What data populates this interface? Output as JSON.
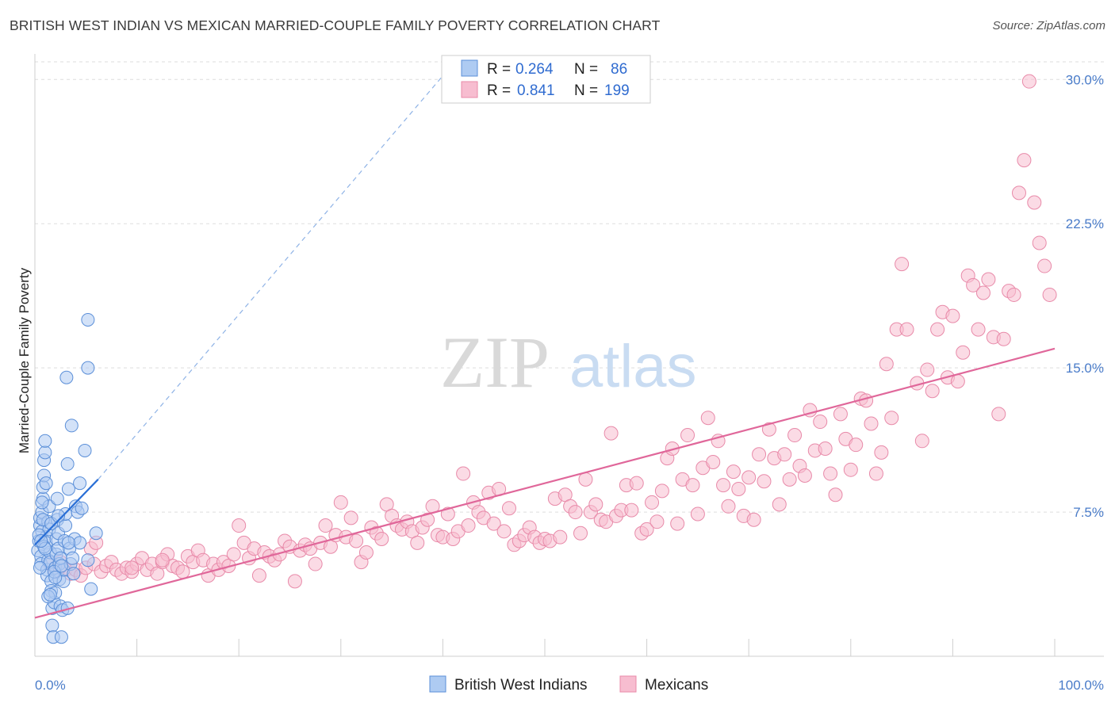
{
  "title": "BRITISH WEST INDIAN VS MEXICAN MARRIED-COUPLE FAMILY POVERTY CORRELATION CHART",
  "source": "Source: ZipAtlas.com",
  "watermark": {
    "zip": "ZIP",
    "atlas": "atlas"
  },
  "colors": {
    "blue_fill": "#aecbf2",
    "blue_stroke": "#5b8fd8",
    "blue_line": "#2a6fd6",
    "pink_fill": "#f7bdd0",
    "pink_stroke": "#e88aa9",
    "pink_line": "#e0679a",
    "grid": "#dddddd",
    "tick_label": "#4a7cc9"
  },
  "legend": {
    "rows": [
      {
        "r_label": "R =",
        "r_value": "0.264",
        "n_label": "N =",
        "n_value": "86"
      },
      {
        "r_label": "R =",
        "r_value": "0.841",
        "n_label": "N =",
        "n_value": "199"
      }
    ]
  },
  "bottom_legend": [
    "British West Indians",
    "Mexicans"
  ],
  "chart_data": {
    "type": "scatter",
    "title": "BRITISH WEST INDIAN VS MEXICAN MARRIED-COUPLE FAMILY POVERTY CORRELATION CHART",
    "xlabel": "",
    "ylabel": "Married-Couple Family Poverty",
    "xlim": [
      0,
      100
    ],
    "ylim": [
      0,
      31
    ],
    "x_tick_labels": [
      "0.0%",
      "100.0%"
    ],
    "y_ticks": [
      7.5,
      15.0,
      22.5,
      30.0
    ],
    "y_tick_labels": [
      "7.5%",
      "15.0%",
      "22.5%",
      "30.0%"
    ],
    "grid": true,
    "legend_position": "top-center",
    "series": [
      {
        "name": "British West Indians",
        "R": 0.264,
        "N": 86,
        "trend": {
          "x0": 0,
          "y0": 5.8,
          "x1": 6.2,
          "y1": 9.2,
          "dashed_to_x": 40.5,
          "dashed_to_y": 30.5
        },
        "points": [
          [
            0.3,
            5.5
          ],
          [
            0.4,
            6.0
          ],
          [
            0.5,
            6.8
          ],
          [
            0.5,
            7.2
          ],
          [
            0.6,
            5.2
          ],
          [
            0.6,
            4.8
          ],
          [
            0.7,
            6.5
          ],
          [
            0.7,
            7.5
          ],
          [
            0.8,
            8.2
          ],
          [
            0.8,
            8.8
          ],
          [
            0.9,
            9.4
          ],
          [
            0.9,
            10.2
          ],
          [
            1.0,
            10.6
          ],
          [
            1.0,
            11.2
          ],
          [
            1.1,
            6.2
          ],
          [
            1.1,
            5.9
          ],
          [
            1.2,
            4.5
          ],
          [
            1.2,
            4.2
          ],
          [
            1.3,
            5.0
          ],
          [
            1.3,
            7.0
          ],
          [
            1.4,
            7.8
          ],
          [
            1.4,
            6.6
          ],
          [
            1.5,
            5.4
          ],
          [
            1.5,
            4.9
          ],
          [
            1.6,
            3.9
          ],
          [
            1.6,
            3.4
          ],
          [
            1.7,
            2.5
          ],
          [
            1.7,
            1.6
          ],
          [
            1.8,
            1.0
          ],
          [
            1.9,
            2.8
          ],
          [
            2.0,
            3.3
          ],
          [
            2.0,
            4.6
          ],
          [
            2.1,
            5.3
          ],
          [
            2.1,
            6.1
          ],
          [
            2.2,
            7.1
          ],
          [
            2.2,
            8.2
          ],
          [
            2.3,
            6.4
          ],
          [
            2.3,
            5.6
          ],
          [
            2.4,
            4.8
          ],
          [
            2.4,
            4.0
          ],
          [
            2.5,
            2.6
          ],
          [
            2.6,
            1.0
          ],
          [
            2.7,
            2.4
          ],
          [
            2.8,
            3.9
          ],
          [
            2.8,
            4.5
          ],
          [
            2.9,
            6.0
          ],
          [
            3.0,
            6.8
          ],
          [
            3.0,
            7.4
          ],
          [
            3.1,
            14.5
          ],
          [
            3.2,
            10.0
          ],
          [
            3.3,
            8.7
          ],
          [
            3.4,
            5.6
          ],
          [
            3.5,
            4.8
          ],
          [
            3.6,
            12.0
          ],
          [
            3.7,
            5.1
          ],
          [
            3.8,
            4.3
          ],
          [
            4.0,
            7.8
          ],
          [
            4.2,
            7.5
          ],
          [
            4.4,
            9.0
          ],
          [
            4.6,
            7.7
          ],
          [
            4.9,
            10.7
          ],
          [
            5.2,
            5.0
          ],
          [
            5.5,
            3.5
          ],
          [
            5.2,
            15.0
          ],
          [
            5.2,
            17.5
          ],
          [
            6.0,
            6.4
          ],
          [
            0.5,
            4.6
          ],
          [
            0.9,
            5.7
          ],
          [
            1.3,
            3.1
          ],
          [
            1.9,
            4.4
          ],
          [
            2.5,
            5.1
          ],
          [
            3.2,
            2.5
          ],
          [
            0.4,
            6.3
          ],
          [
            0.8,
            7.1
          ],
          [
            1.6,
            6.9
          ],
          [
            2.3,
            7.3
          ],
          [
            3.9,
            6.1
          ],
          [
            4.4,
            5.9
          ],
          [
            1.1,
            9.0
          ],
          [
            0.7,
            8.0
          ],
          [
            2.0,
            4.1
          ],
          [
            1.5,
            3.2
          ],
          [
            2.6,
            4.7
          ],
          [
            3.3,
            5.9
          ],
          [
            1.0,
            5.6
          ],
          [
            0.6,
            6.0
          ]
        ]
      },
      {
        "name": "Mexicans",
        "R": 0.841,
        "N": 199,
        "trend": {
          "x0": 0,
          "y0": 2.0,
          "x1": 100,
          "y1": 16.0
        },
        "points": [
          [
            1.5,
            4.8
          ],
          [
            2.0,
            4.4
          ],
          [
            2.5,
            4.9
          ],
          [
            3.0,
            4.5
          ],
          [
            3.5,
            4.3
          ],
          [
            4.0,
            4.5
          ],
          [
            4.5,
            4.2
          ],
          [
            5.0,
            4.6
          ],
          [
            5.5,
            5.6
          ],
          [
            5.8,
            4.8
          ],
          [
            6.5,
            4.4
          ],
          [
            7.0,
            4.7
          ],
          [
            7.5,
            4.9
          ],
          [
            8.0,
            4.5
          ],
          [
            8.5,
            4.3
          ],
          [
            9.0,
            4.6
          ],
          [
            9.5,
            4.4
          ],
          [
            10.0,
            4.8
          ],
          [
            10.5,
            5.1
          ],
          [
            11.0,
            4.5
          ],
          [
            11.5,
            4.8
          ],
          [
            12.0,
            4.3
          ],
          [
            12.5,
            4.9
          ],
          [
            13.0,
            5.3
          ],
          [
            13.5,
            4.7
          ],
          [
            14.0,
            4.6
          ],
          [
            14.5,
            4.4
          ],
          [
            15.0,
            5.2
          ],
          [
            15.5,
            4.9
          ],
          [
            16.0,
            5.5
          ],
          [
            16.5,
            5.0
          ],
          [
            17.0,
            4.2
          ],
          [
            17.5,
            4.8
          ],
          [
            18.0,
            4.5
          ],
          [
            18.5,
            4.9
          ],
          [
            19.0,
            4.7
          ],
          [
            19.5,
            5.3
          ],
          [
            20.0,
            6.8
          ],
          [
            20.5,
            5.9
          ],
          [
            21.0,
            5.1
          ],
          [
            21.5,
            5.6
          ],
          [
            22.0,
            4.2
          ],
          [
            22.5,
            5.4
          ],
          [
            23.0,
            5.2
          ],
          [
            23.5,
            5.0
          ],
          [
            24.0,
            5.3
          ],
          [
            24.5,
            6.0
          ],
          [
            25.0,
            5.7
          ],
          [
            25.5,
            3.9
          ],
          [
            26.0,
            5.5
          ],
          [
            26.5,
            5.8
          ],
          [
            27.0,
            5.6
          ],
          [
            27.5,
            4.8
          ],
          [
            28.0,
            5.9
          ],
          [
            28.5,
            6.8
          ],
          [
            29.0,
            5.7
          ],
          [
            29.5,
            6.3
          ],
          [
            30.0,
            8.0
          ],
          [
            30.5,
            6.2
          ],
          [
            31.0,
            7.2
          ],
          [
            31.5,
            6.0
          ],
          [
            32.0,
            4.9
          ],
          [
            32.5,
            5.4
          ],
          [
            33.0,
            6.7
          ],
          [
            33.5,
            6.4
          ],
          [
            34.0,
            6.1
          ],
          [
            34.5,
            7.9
          ],
          [
            35.0,
            7.3
          ],
          [
            35.5,
            6.8
          ],
          [
            36.0,
            6.6
          ],
          [
            36.5,
            7.0
          ],
          [
            37.0,
            6.5
          ],
          [
            37.5,
            5.9
          ],
          [
            38.0,
            6.7
          ],
          [
            38.5,
            7.1
          ],
          [
            39.0,
            7.8
          ],
          [
            39.5,
            6.3
          ],
          [
            40.0,
            6.2
          ],
          [
            40.5,
            7.4
          ],
          [
            41.0,
            6.1
          ],
          [
            41.5,
            6.5
          ],
          [
            42.0,
            9.5
          ],
          [
            42.5,
            6.8
          ],
          [
            43.0,
            8.0
          ],
          [
            43.5,
            7.5
          ],
          [
            44.0,
            7.2
          ],
          [
            44.5,
            8.5
          ],
          [
            45.0,
            6.9
          ],
          [
            45.5,
            8.7
          ],
          [
            46.0,
            6.5
          ],
          [
            46.5,
            7.7
          ],
          [
            47.0,
            5.8
          ],
          [
            47.5,
            6.0
          ],
          [
            48.0,
            6.3
          ],
          [
            48.5,
            6.7
          ],
          [
            49.0,
            6.2
          ],
          [
            49.5,
            5.9
          ],
          [
            50.0,
            6.1
          ],
          [
            50.5,
            6.0
          ],
          [
            51.0,
            8.2
          ],
          [
            51.5,
            6.2
          ],
          [
            52.0,
            8.4
          ],
          [
            52.5,
            7.8
          ],
          [
            53.0,
            7.5
          ],
          [
            53.5,
            6.4
          ],
          [
            54.0,
            9.2
          ],
          [
            54.5,
            7.5
          ],
          [
            55.0,
            7.9
          ],
          [
            55.5,
            7.1
          ],
          [
            56.0,
            7.0
          ],
          [
            56.5,
            11.6
          ],
          [
            57.0,
            7.3
          ],
          [
            57.5,
            7.6
          ],
          [
            58.0,
            8.9
          ],
          [
            58.5,
            7.6
          ],
          [
            59.0,
            9.0
          ],
          [
            59.5,
            6.4
          ],
          [
            60.0,
            6.6
          ],
          [
            60.5,
            8.0
          ],
          [
            61.0,
            7.0
          ],
          [
            61.5,
            8.6
          ],
          [
            62.0,
            10.3
          ],
          [
            62.5,
            10.8
          ],
          [
            63.0,
            6.9
          ],
          [
            63.5,
            9.2
          ],
          [
            64.0,
            11.5
          ],
          [
            64.5,
            8.9
          ],
          [
            65.0,
            7.4
          ],
          [
            65.5,
            9.8
          ],
          [
            66.0,
            12.4
          ],
          [
            66.5,
            10.1
          ],
          [
            67.0,
            11.2
          ],
          [
            67.5,
            8.9
          ],
          [
            68.0,
            7.8
          ],
          [
            68.5,
            9.6
          ],
          [
            69.0,
            8.7
          ],
          [
            69.5,
            7.3
          ],
          [
            70.0,
            9.3
          ],
          [
            70.5,
            7.1
          ],
          [
            71.0,
            10.5
          ],
          [
            71.5,
            9.1
          ],
          [
            72.0,
            11.8
          ],
          [
            72.5,
            10.3
          ],
          [
            73.0,
            7.9
          ],
          [
            73.5,
            10.5
          ],
          [
            74.0,
            9.2
          ],
          [
            74.5,
            11.5
          ],
          [
            75.0,
            9.9
          ],
          [
            75.5,
            9.4
          ],
          [
            76.0,
            12.8
          ],
          [
            76.5,
            10.7
          ],
          [
            77.0,
            12.2
          ],
          [
            77.5,
            10.8
          ],
          [
            78.0,
            9.5
          ],
          [
            78.5,
            8.4
          ],
          [
            79.0,
            12.6
          ],
          [
            79.5,
            11.3
          ],
          [
            80.0,
            9.7
          ],
          [
            80.5,
            11.0
          ],
          [
            81.0,
            13.4
          ],
          [
            81.5,
            13.3
          ],
          [
            82.0,
            12.1
          ],
          [
            82.5,
            9.5
          ],
          [
            83.0,
            10.6
          ],
          [
            83.5,
            15.2
          ],
          [
            84.0,
            12.4
          ],
          [
            84.5,
            17.0
          ],
          [
            85.0,
            20.4
          ],
          [
            85.5,
            17.0
          ],
          [
            86.5,
            14.2
          ],
          [
            87.0,
            11.2
          ],
          [
            87.5,
            14.9
          ],
          [
            88.0,
            13.8
          ],
          [
            88.5,
            17.0
          ],
          [
            89.0,
            17.9
          ],
          [
            89.5,
            14.5
          ],
          [
            90.0,
            17.7
          ],
          [
            90.5,
            14.3
          ],
          [
            91.0,
            15.8
          ],
          [
            91.5,
            19.8
          ],
          [
            92.0,
            19.3
          ],
          [
            92.5,
            17.0
          ],
          [
            93.0,
            18.9
          ],
          [
            93.5,
            19.6
          ],
          [
            94.0,
            16.6
          ],
          [
            94.5,
            12.6
          ],
          [
            95.0,
            16.5
          ],
          [
            95.5,
            19.0
          ],
          [
            96.0,
            18.8
          ],
          [
            96.5,
            24.1
          ],
          [
            97.0,
            25.8
          ],
          [
            97.5,
            29.9
          ],
          [
            98.0,
            23.6
          ],
          [
            98.5,
            21.5
          ],
          [
            99.0,
            20.3
          ],
          [
            99.5,
            18.8
          ],
          [
            6.0,
            5.9
          ],
          [
            9.5,
            4.6
          ],
          [
            12.5,
            5.0
          ]
        ]
      }
    ]
  }
}
